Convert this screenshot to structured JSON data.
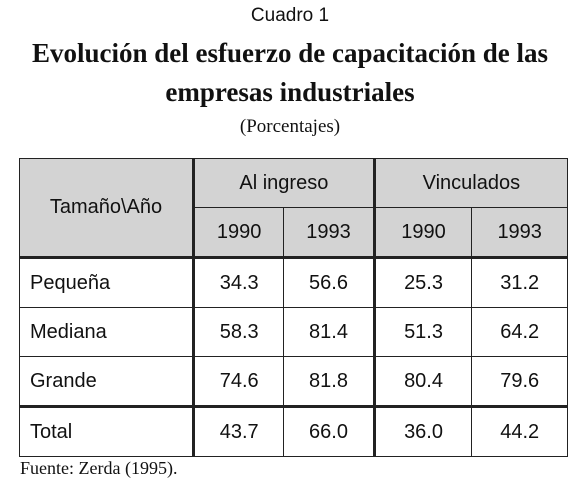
{
  "header": {
    "label": "Cuadro 1",
    "title_line1": "Evolución del esfuerzo de capacitación de las",
    "title_line2": "empresas industriales",
    "subtitle": "(Porcentajes)"
  },
  "table": {
    "corner_label": "Tamaño\\Año",
    "groups": [
      "Al ingreso",
      "Vinculados"
    ],
    "years": [
      "1990",
      "1993",
      "1990",
      "1993"
    ],
    "rows": [
      {
        "label": "Pequeña",
        "values": [
          "34.3",
          "56.6",
          "25.3",
          "31.2"
        ]
      },
      {
        "label": "Mediana",
        "values": [
          "58.3",
          "81.4",
          "51.3",
          "64.2"
        ]
      },
      {
        "label": "Grande",
        "values": [
          "74.6",
          "81.8",
          "80.4",
          "79.6"
        ]
      },
      {
        "label": "Total",
        "values": [
          "43.7",
          "66.0",
          "36.0",
          "44.2"
        ]
      }
    ]
  },
  "footer": {
    "source": "Fuente: Zerda (1995)."
  }
}
